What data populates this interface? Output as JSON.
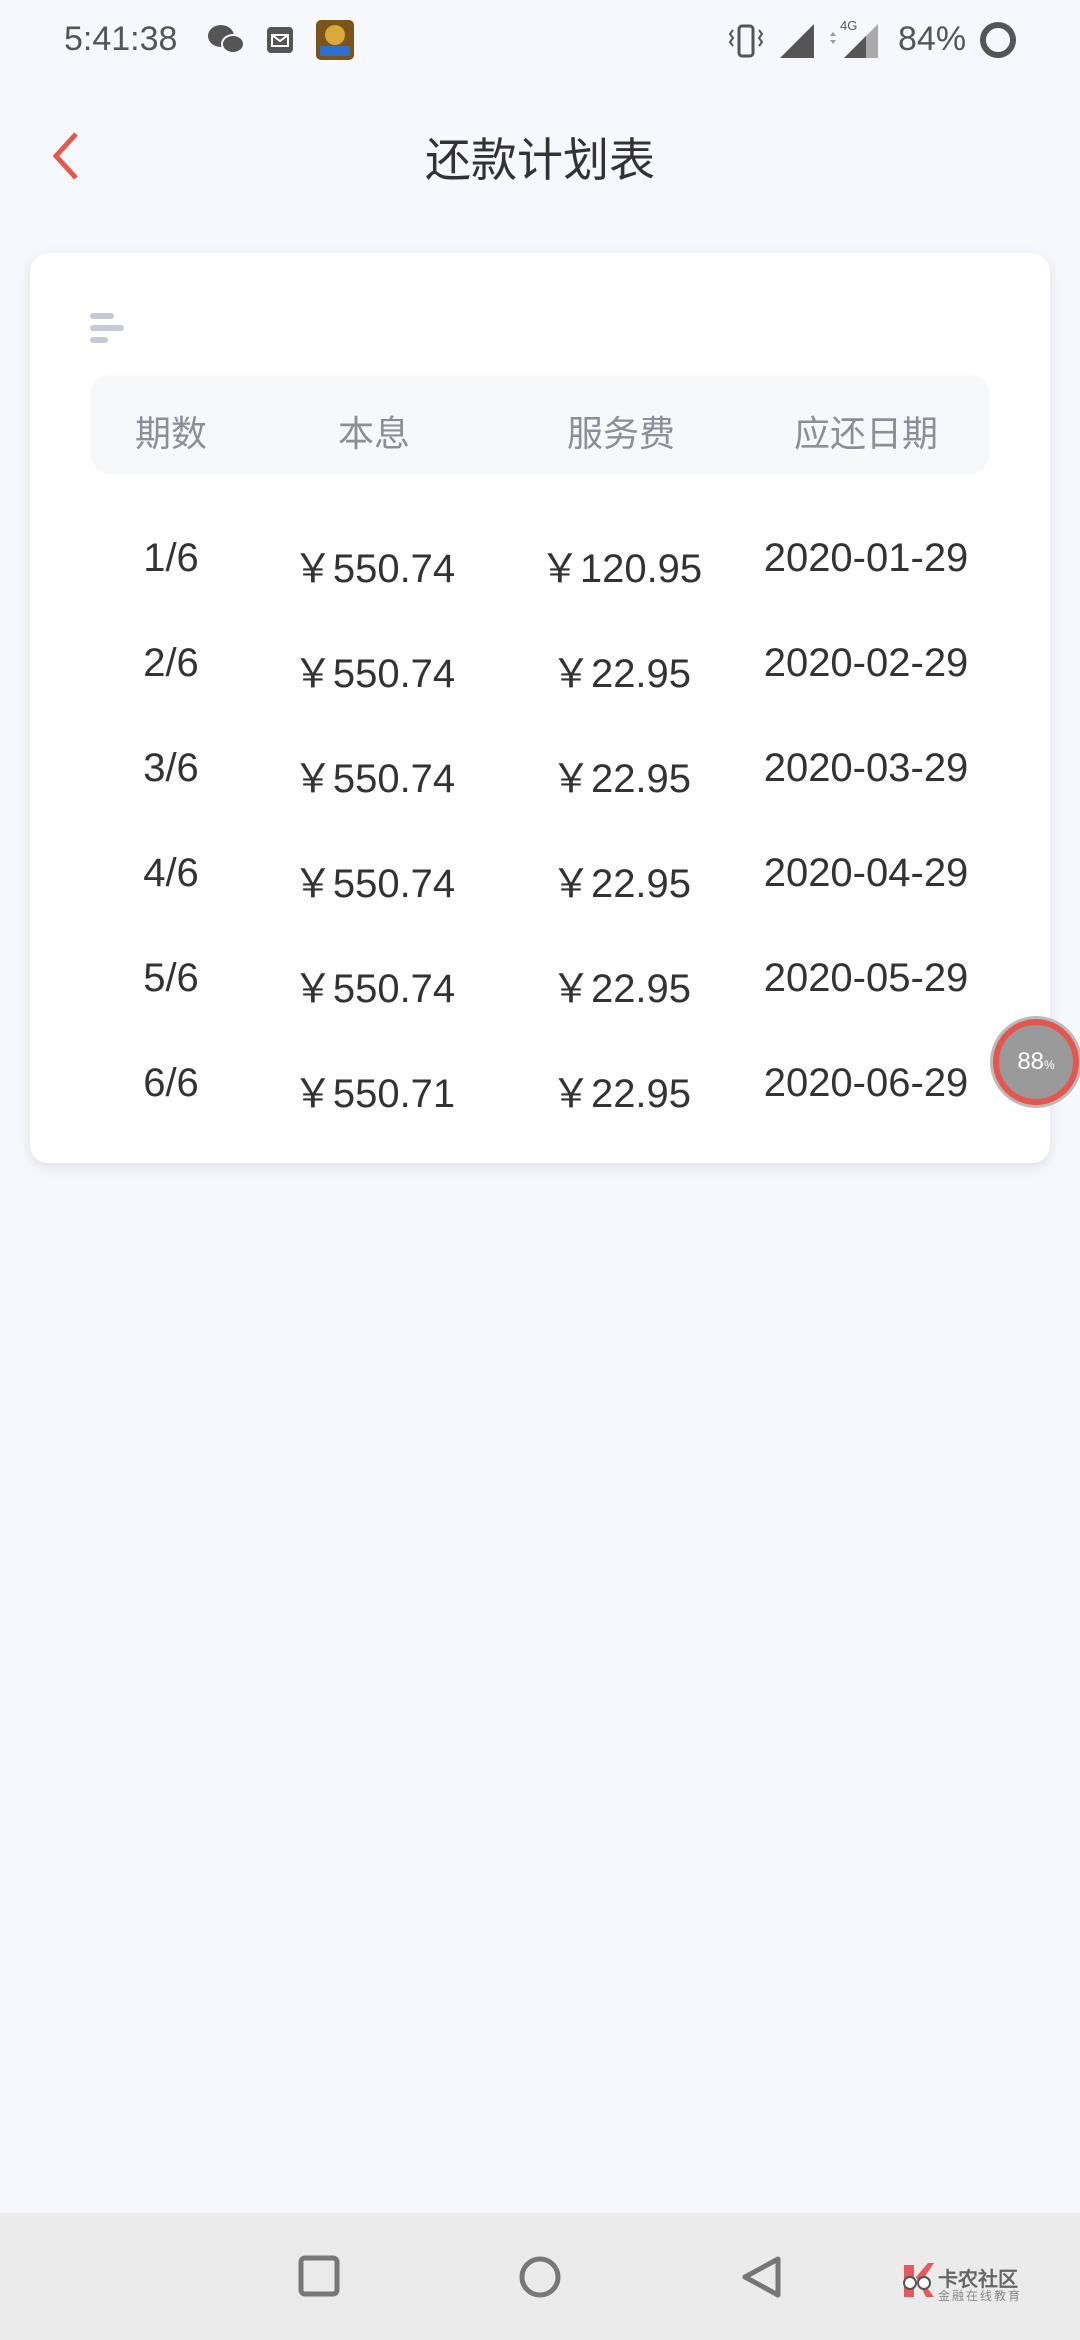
{
  "status_bar": {
    "time": "5:41:38",
    "battery": "84%",
    "network": "4G",
    "icons": [
      "wechat-icon",
      "mail-icon",
      "game-app-icon",
      "vibrate-icon",
      "signal-icon",
      "signal-4g-icon",
      "battery-ring-icon"
    ]
  },
  "header": {
    "title": "还款计划表",
    "back_icon": "chevron-left-icon"
  },
  "colors": {
    "accent": "#e4574f",
    "header_text": "#8e8e99",
    "body_text": "#333333",
    "background": "#f7f8fd"
  },
  "table": {
    "columns": [
      "期数",
      "本息",
      "服务费",
      "应还日期"
    ],
    "rows": [
      {
        "period": "1/6",
        "principal_interest": "￥550.74",
        "service_fee": "￥120.95",
        "due_date": "2020-01-29"
      },
      {
        "period": "2/6",
        "principal_interest": "￥550.74",
        "service_fee": "￥22.95",
        "due_date": "2020-02-29"
      },
      {
        "period": "3/6",
        "principal_interest": "￥550.74",
        "service_fee": "￥22.95",
        "due_date": "2020-03-29"
      },
      {
        "period": "4/6",
        "principal_interest": "￥550.74",
        "service_fee": "￥22.95",
        "due_date": "2020-04-29"
      },
      {
        "period": "5/6",
        "principal_interest": "￥550.74",
        "service_fee": "￥22.95",
        "due_date": "2020-05-29"
      },
      {
        "period": "6/6",
        "principal_interest": "￥550.71",
        "service_fee": "￥22.95",
        "due_date": "2020-06-29"
      }
    ]
  },
  "floating_widget": {
    "value": "88",
    "unit": "%"
  },
  "watermark": {
    "name": "卡农社区",
    "tagline": "金融在线教育"
  }
}
